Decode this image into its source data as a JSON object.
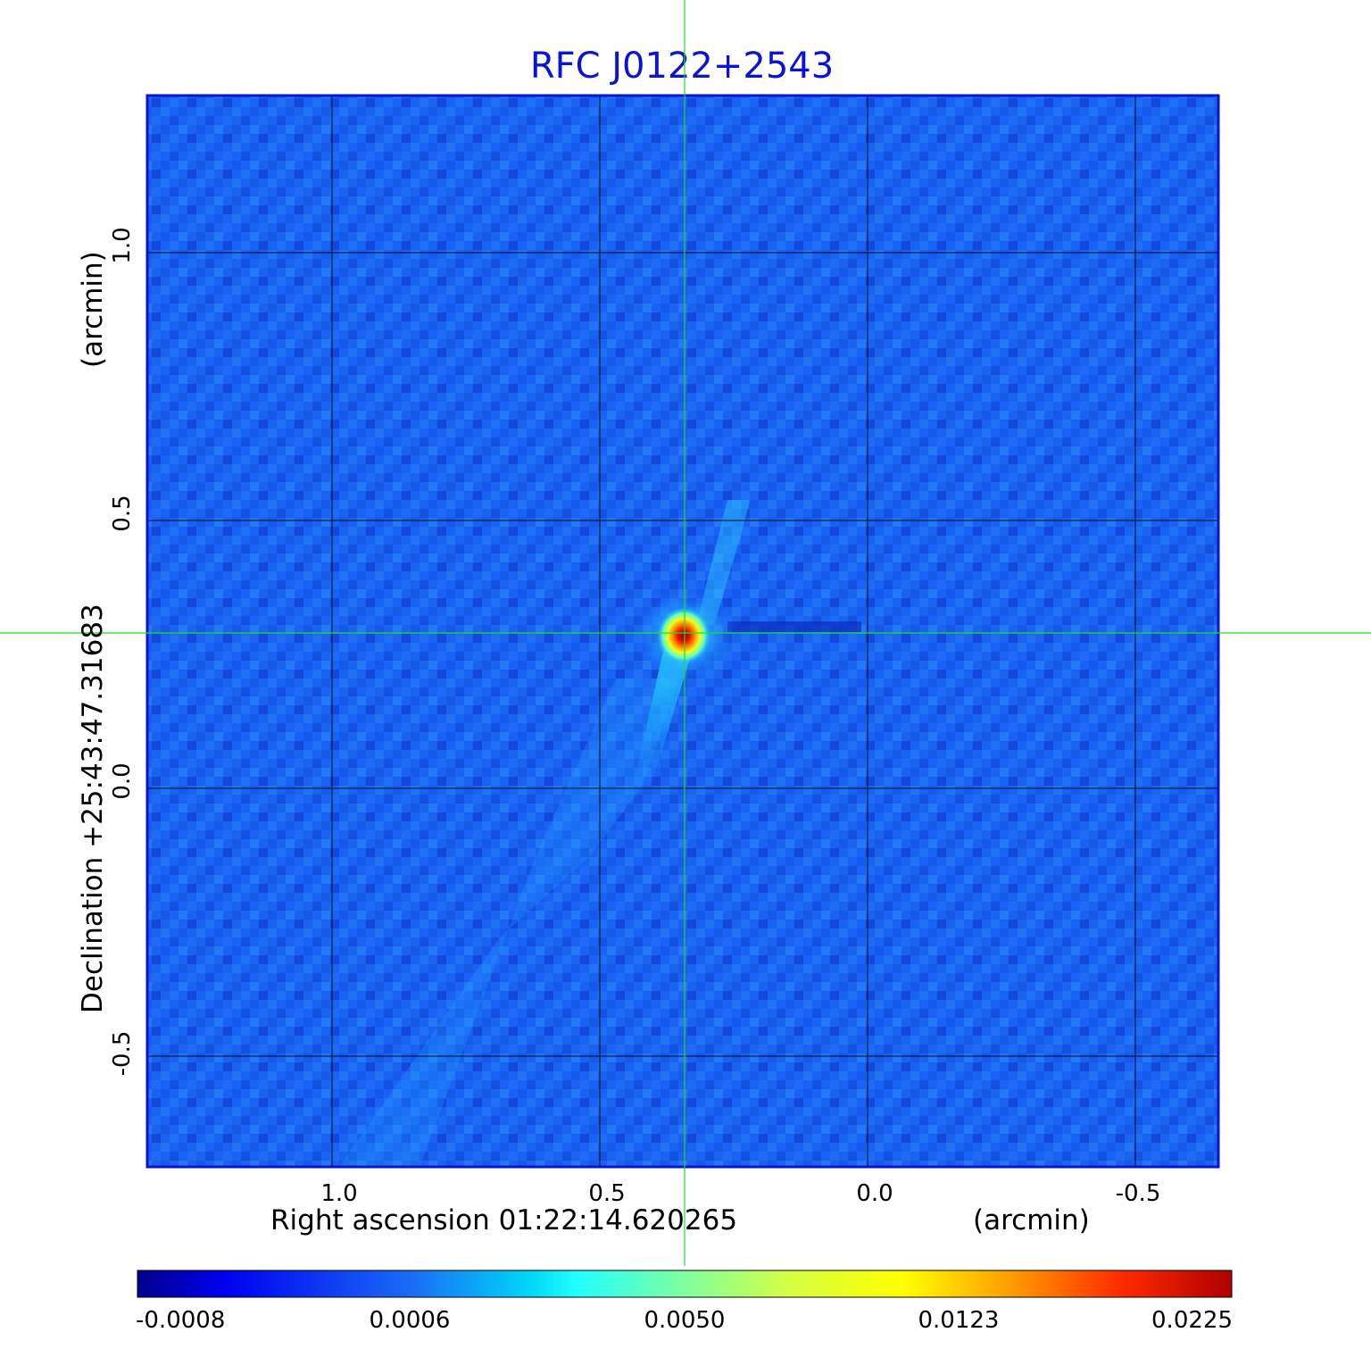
{
  "title": "RFC J0122+2543",
  "x_axis": {
    "label": "Right ascension  01:22:14.620265",
    "unit": "(arcmin)",
    "ticks": [
      "1.0",
      "0.5",
      "0.0",
      "-0.5"
    ]
  },
  "y_axis": {
    "label": "Declination  +25:43:47.31683",
    "unit": "(arcmin)",
    "ticks": [
      "1.0",
      "0.5",
      "0.0",
      "-0.5"
    ]
  },
  "colorbar": {
    "ticks": [
      "-0.0008",
      "0.0006",
      "0.0050",
      "0.0123",
      "0.0225"
    ]
  },
  "colors": {
    "title": "#0a14d2",
    "frame": "#0a14d2",
    "crosshair": "#22dd22",
    "grid": "#000000",
    "background_map": "#1a5cf0"
  }
}
